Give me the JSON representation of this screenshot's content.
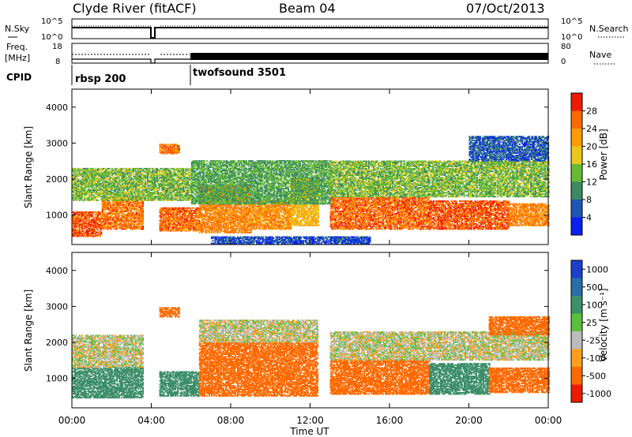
{
  "header": {
    "station": "Clyde River (fitACF)",
    "beam": "Beam 04",
    "date": "07/Oct/2013"
  },
  "panels": {
    "nsky": {
      "label": "N.Sky",
      "ticks_left": [
        "10^5",
        "10^0"
      ],
      "ticks_right": [
        "10^5",
        "10^0"
      ],
      "right_label": "N.Search"
    },
    "freq": {
      "label_line1": "Freq.",
      "label_line2": "[MHz]",
      "ticks_left": [
        "18",
        "8"
      ],
      "ticks_right": [
        "80",
        "0"
      ],
      "right_label": "Nave"
    },
    "cpid": {
      "label": "CPID",
      "programs": [
        {
          "name": "rbsp 200",
          "start_hour": 0
        },
        {
          "name": "twofsound 3501",
          "start_hour": 6
        }
      ]
    }
  },
  "axes": {
    "ylabel": "Slant Range [km]",
    "xlabel": "Time UT",
    "y_ticks": [
      "1000",
      "2000",
      "3000",
      "4000"
    ],
    "x_ticks": [
      "00:00",
      "04:00",
      "08:00",
      "12:00",
      "16:00",
      "20:00",
      "00:00"
    ]
  },
  "colorbars": {
    "power": {
      "label": "Power [dB]",
      "ticks": [
        "4",
        "8",
        "12",
        "16",
        "20",
        "24",
        "28"
      ],
      "colors": [
        "#0a20ee",
        "#1d55b4",
        "#3c8a63",
        "#66bb33",
        "#e8c81c",
        "#ff9a00",
        "#ff6a00",
        "#ee1a00"
      ]
    },
    "velocity": {
      "label": "Velocity [m s⁻¹]",
      "ticks": [
        "1000",
        "500",
        "100",
        "25",
        "-25",
        "-100",
        "-500",
        "-1000"
      ],
      "colors": [
        "#1e3fcc",
        "#2a6da8",
        "#3d8f6a",
        "#5bbf3c",
        "#bbbbbb",
        "#ff9f1c",
        "#ff6a00",
        "#ee1a00"
      ]
    }
  },
  "chart_data": [
    {
      "type": "line",
      "title": "N.Sky",
      "x": [
        0,
        1,
        2,
        3,
        4,
        4.1,
        4.3,
        5,
        6,
        8,
        10,
        12,
        14,
        16,
        18,
        20,
        22,
        24
      ],
      "y": [
        100000,
        100000,
        100000,
        100000,
        100000,
        1,
        100000,
        100000,
        100000,
        100000,
        100000,
        100000,
        100000,
        100000,
        100000,
        100000,
        100000,
        100000
      ],
      "xlabel": "",
      "ylabel": "N.Sky",
      "ylim": [
        1,
        100000
      ]
    },
    {
      "type": "line",
      "title": "Freq.",
      "series": [
        {
          "name": "Freq. [MHz]",
          "x": [
            0,
            4,
            4.1,
            4.3,
            24
          ],
          "values": [
            10,
            10,
            8,
            10,
            10
          ]
        },
        {
          "name": "Nave",
          "x": [
            0,
            4,
            4.3,
            24
          ],
          "values": [
            45,
            45,
            45,
            45
          ]
        }
      ],
      "xlabel": "",
      "ylabel": "Freq. [MHz]",
      "ylim": [
        8,
        18
      ]
    },
    {
      "type": "heatmap",
      "title": "Power [dB]",
      "xlabel": "Time UT",
      "ylabel": "Slant Range [km]",
      "xlim": [
        0,
        24
      ],
      "ylim": [
        180,
        4500
      ],
      "colorbar_ticks": [
        4,
        8,
        12,
        16,
        20,
        24,
        28
      ],
      "scatter_bands": [
        {
          "t0": 0.0,
          "t1": 1.5,
          "r0": 400,
          "r1": 1100,
          "level": 27
        },
        {
          "t0": 1.5,
          "t1": 3.6,
          "r0": 600,
          "r1": 1500,
          "level": 25
        },
        {
          "t0": 4.4,
          "t1": 5.4,
          "r0": 2700,
          "r1": 2950,
          "level": 25
        },
        {
          "t0": 4.4,
          "t1": 6.4,
          "r0": 550,
          "r1": 1200,
          "level": 26
        },
        {
          "t0": 6.4,
          "t1": 9.0,
          "r0": 500,
          "r1": 1800,
          "level": 24
        },
        {
          "t0": 9.0,
          "t1": 11.0,
          "r0": 600,
          "r1": 1400,
          "level": 23
        },
        {
          "t0": 11.0,
          "t1": 12.4,
          "r0": 700,
          "r1": 2000,
          "level": 20
        },
        {
          "t0": 13.0,
          "t1": 18.0,
          "r0": 600,
          "r1": 1500,
          "level": 26
        },
        {
          "t0": 18.0,
          "t1": 22.0,
          "r0": 600,
          "r1": 1400,
          "level": 27
        },
        {
          "t0": 22.0,
          "t1": 24.0,
          "r0": 700,
          "r1": 1300,
          "level": 24
        },
        {
          "t0": 0.0,
          "t1": 6.0,
          "r0": 1400,
          "r1": 2300,
          "level": 14
        },
        {
          "t0": 6.0,
          "t1": 13.0,
          "r0": 1300,
          "r1": 2500,
          "level": 12
        },
        {
          "t0": 13.0,
          "t1": 24.0,
          "r0": 1500,
          "r1": 2500,
          "level": 14
        },
        {
          "t0": 20.0,
          "t1": 24.0,
          "r0": 2500,
          "r1": 3200,
          "level": 6
        },
        {
          "t0": 7.0,
          "t1": 15.0,
          "r0": 200,
          "r1": 400,
          "level": 5
        }
      ]
    },
    {
      "type": "heatmap",
      "title": "Velocity [m s⁻¹]",
      "xlabel": "Time UT",
      "ylabel": "Slant Range [km]",
      "xlim": [
        0,
        24
      ],
      "ylim": [
        180,
        4500
      ],
      "colorbar_ticks": [
        1000,
        500,
        100,
        25,
        -25,
        -100,
        -500,
        -1000
      ],
      "scatter_bands": [
        {
          "t0": 0.0,
          "t1": 3.6,
          "r0": 450,
          "r1": 1300,
          "level": 150
        },
        {
          "t0": 0.0,
          "t1": 3.6,
          "r0": 1300,
          "r1": 2200,
          "level": 0
        },
        {
          "t0": 4.4,
          "t1": 6.4,
          "r0": 500,
          "r1": 1200,
          "level": 150
        },
        {
          "t0": 4.4,
          "t1": 5.4,
          "r0": 2700,
          "r1": 2950,
          "level": -150
        },
        {
          "t0": 6.4,
          "t1": 12.4,
          "r0": 500,
          "r1": 2000,
          "level": -200
        },
        {
          "t0": 6.4,
          "t1": 12.4,
          "r0": 2000,
          "r1": 2600,
          "level": 0
        },
        {
          "t0": 13.0,
          "t1": 18.0,
          "r0": 550,
          "r1": 1500,
          "level": -150
        },
        {
          "t0": 13.0,
          "t1": 24.0,
          "r0": 1500,
          "r1": 2300,
          "level": 0
        },
        {
          "t0": 18.0,
          "t1": 21.0,
          "r0": 550,
          "r1": 1400,
          "level": 200
        },
        {
          "t0": 21.0,
          "t1": 24.0,
          "r0": 600,
          "r1": 1300,
          "level": -150
        },
        {
          "t0": 21.0,
          "t1": 24.0,
          "r0": 2200,
          "r1": 2700,
          "level": -200
        }
      ]
    }
  ]
}
